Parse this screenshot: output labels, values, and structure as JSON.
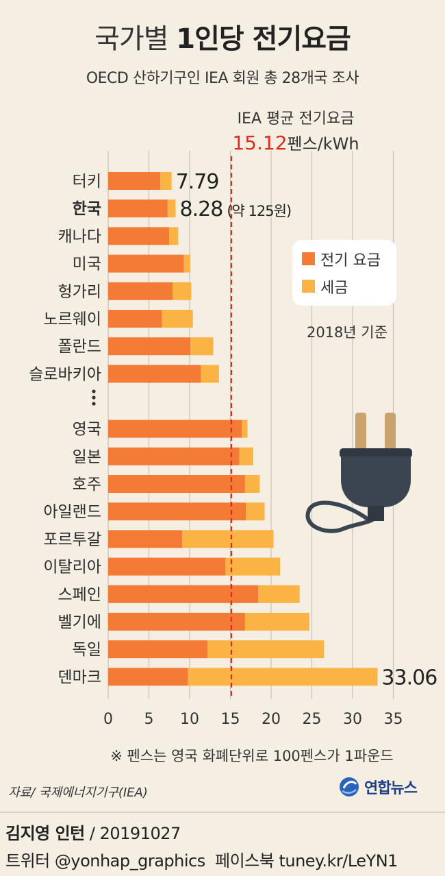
{
  "header": {
    "title_light": "국가별",
    "title_bold": "1인당 전기요금",
    "subtitle": "OECD 산하기구인 IEA 회원 총 28개국 조사"
  },
  "average": {
    "label": "IEA 평균 전기요금",
    "value_text": "15.12",
    "unit_text": "펜스/kWh",
    "color": "#e02a1f"
  },
  "legend": {
    "electricity": "전기 요금",
    "tax": "세금",
    "base_year": "2018년 기준"
  },
  "footnote": "※ 펜스는 영국 화폐단위로 100펜스가 1파운드",
  "source": "자료/ 국제에너지기구(IEA)",
  "agency": "연합뉴스",
  "byline": {
    "author": "김지영 인턴",
    "date": "/ 20191027",
    "twitter": "트위터 @yonhap_graphics",
    "facebook": "페이스북 tuney.kr/LeYN1"
  },
  "colors": {
    "electricity": "#f47b35",
    "tax": "#fbb444",
    "average_line": "#e02a1f",
    "grid": "#c9c1b5",
    "plug_body": "#3b4551",
    "plug_prong": "#c9a36b"
  },
  "icons": {
    "plug": "power-plug-icon",
    "ellipsis": "vertical-ellipsis-icon",
    "logo": "yonhap-globe-icon"
  },
  "chart_data": {
    "type": "bar",
    "orientation": "horizontal",
    "stacked": true,
    "unit": "펜스/kWh",
    "xlim": [
      0,
      35
    ],
    "xticks": [
      0,
      5,
      10,
      15,
      20,
      25,
      30,
      35
    ],
    "average_line": 15.12,
    "ellipsis_after_index": 7,
    "categories": [
      "터키",
      "한국",
      "캐나다",
      "미국",
      "헝가리",
      "노르웨이",
      "폴란드",
      "슬로바키아",
      "영국",
      "일본",
      "호주",
      "아일랜드",
      "포르투갈",
      "이탈리아",
      "스페인",
      "벨기에",
      "독일",
      "덴마크"
    ],
    "highlight": [
      "한국"
    ],
    "series": [
      {
        "name": "전기 요금",
        "values": [
          6.4,
          7.3,
          7.5,
          9.3,
          7.9,
          6.6,
          10.1,
          11.4,
          16.4,
          16.1,
          16.8,
          16.9,
          9.1,
          14.4,
          18.4,
          16.8,
          12.2,
          9.8
        ]
      },
      {
        "name": "세금",
        "values": [
          1.39,
          0.98,
          1.1,
          0.8,
          2.3,
          3.8,
          2.8,
          2.2,
          0.7,
          1.7,
          1.8,
          2.3,
          11.2,
          6.7,
          5.1,
          7.9,
          14.3,
          23.26
        ]
      }
    ],
    "data_labels": [
      {
        "category": "터키",
        "text": "7.79"
      },
      {
        "category": "한국",
        "text": "8.28",
        "extra": "(약 125원)"
      },
      {
        "category": "덴마크",
        "text": "33.06"
      }
    ]
  }
}
